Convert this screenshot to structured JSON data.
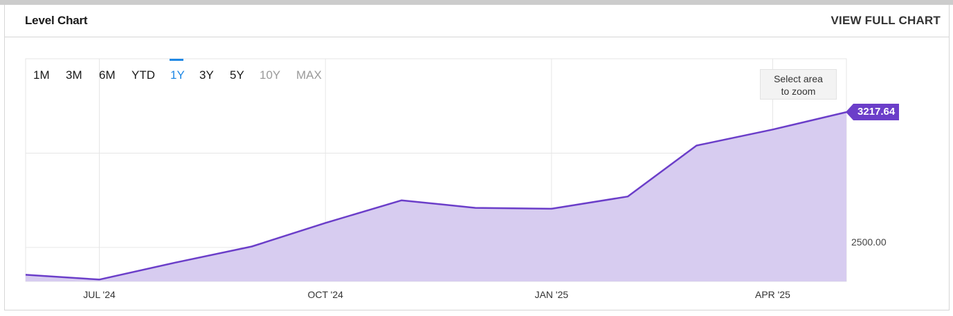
{
  "header": {
    "title": "Level Chart",
    "view_full_label": "VIEW FULL CHART"
  },
  "ranges": [
    {
      "label": "1M",
      "state": "normal"
    },
    {
      "label": "3M",
      "state": "normal"
    },
    {
      "label": "6M",
      "state": "normal"
    },
    {
      "label": "YTD",
      "state": "normal"
    },
    {
      "label": "1Y",
      "state": "active"
    },
    {
      "label": "3Y",
      "state": "normal"
    },
    {
      "label": "5Y",
      "state": "normal"
    },
    {
      "label": "10Y",
      "state": "disabled"
    },
    {
      "label": "MAX",
      "state": "disabled"
    }
  ],
  "zoom_hint": {
    "line1": "Select area",
    "line2": "to zoom"
  },
  "colors": {
    "line": "#6b3ec9",
    "area": "#d7ccf0",
    "active_range": "#1e88e5"
  },
  "chart_data": {
    "type": "area",
    "x_ticks": [
      "JUL '24",
      "OCT '24",
      "JAN '25",
      "APR '25"
    ],
    "y_ticks": [
      2500
    ],
    "y_tick_labels": [
      "2500.00"
    ],
    "ylim": [
      2320,
      3500
    ],
    "x": [
      "2024-06",
      "2024-07",
      "2024-08",
      "2024-09",
      "2024-10",
      "2024-11",
      "2024-12",
      "2025-01",
      "2025-02",
      "2025-03",
      "2025-04",
      "2025-05"
    ],
    "values": [
      2355,
      2330,
      2420,
      2505,
      2630,
      2750,
      2710,
      2705,
      2770,
      3040,
      3125,
      3217.64
    ],
    "last_value_label": "3217.64",
    "grid": true
  }
}
